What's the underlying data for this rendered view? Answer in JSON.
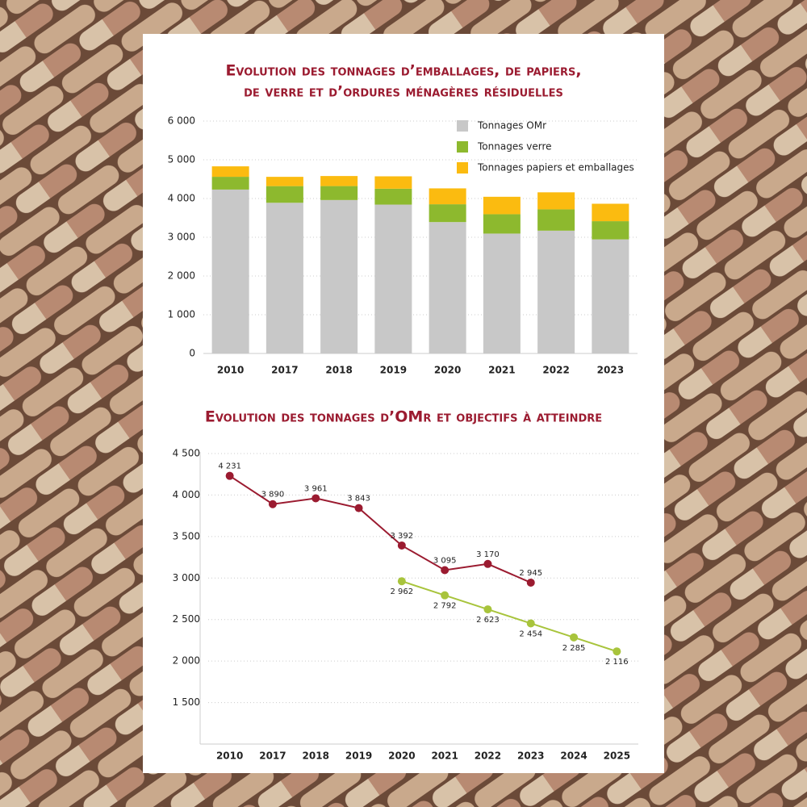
{
  "chart_data": [
    {
      "type": "bar",
      "stacked": true,
      "title": [
        "Evolution des tonnages d’emballages, de papiers,",
        "de verre et d’ordures ménagères résiduelles"
      ],
      "categories": [
        "2010",
        "2017",
        "2018",
        "2019",
        "2020",
        "2021",
        "2022",
        "2023"
      ],
      "series": [
        {
          "name": "Tonnages OMr",
          "color": "#c8c8c8",
          "values": [
            4231,
            3890,
            3961,
            3843,
            3392,
            3095,
            3170,
            2945
          ]
        },
        {
          "name": "Tonnages verre",
          "color": "#8db92e",
          "values": [
            330,
            430,
            360,
            410,
            460,
            500,
            550,
            470
          ]
        },
        {
          "name": "Tonnages papiers et emballages",
          "color": "#fbbb10",
          "values": [
            270,
            240,
            260,
            320,
            410,
            450,
            440,
            450
          ]
        }
      ],
      "ylim": [
        0,
        6000
      ],
      "yticks": [
        0,
        {
          "value": 1000,
          "label": "1 000"
        },
        {
          "value": 2000,
          "label": "2 000"
        },
        {
          "value": 3000,
          "label": "3 000"
        },
        {
          "value": 4000,
          "label": "4 000"
        },
        {
          "value": 5000,
          "label": "5 000"
        },
        {
          "value": 6000,
          "label": "6 000"
        }
      ],
      "grid": true,
      "legend": "top-right"
    },
    {
      "type": "line",
      "title": [
        "Evolution des tonnages d’OMr et objectifs à atteindre"
      ],
      "categories": [
        "2010",
        "2017",
        "2018",
        "2019",
        "2020",
        "2021",
        "2022",
        "2023",
        "2024",
        "2025"
      ],
      "series": [
        {
          "color": "#9b1b30",
          "values": [
            4231,
            3890,
            3961,
            3843,
            3392,
            3095,
            3170,
            2945,
            null,
            null
          ],
          "value_labels": [
            "4 231",
            "3 890",
            "3 961",
            "3 843",
            "3 392",
            "3 095",
            "3 170",
            "2 945",
            null,
            null
          ],
          "label_position": "above"
        },
        {
          "color": "#a8c43c",
          "values": [
            null,
            null,
            null,
            null,
            2962,
            2792,
            2623,
            2454,
            2285,
            2116
          ],
          "value_labels": [
            null,
            null,
            null,
            null,
            "2 962",
            "2 792",
            "2 623",
            "2 454",
            "2 285",
            "2 116"
          ],
          "label_position": "below"
        }
      ],
      "ylim": [
        1000,
        4500
      ],
      "yticks": [
        {
          "value": 1500,
          "label": "1 500"
        },
        {
          "value": 2000,
          "label": "2 000"
        },
        {
          "value": 2500,
          "label": "2 500"
        },
        {
          "value": 3000,
          "label": "3 000"
        },
        {
          "value": 3500,
          "label": "3 500"
        },
        {
          "value": 4000,
          "label": "4 000"
        },
        {
          "value": 4500,
          "label": "4 500"
        }
      ],
      "grid": true
    }
  ]
}
